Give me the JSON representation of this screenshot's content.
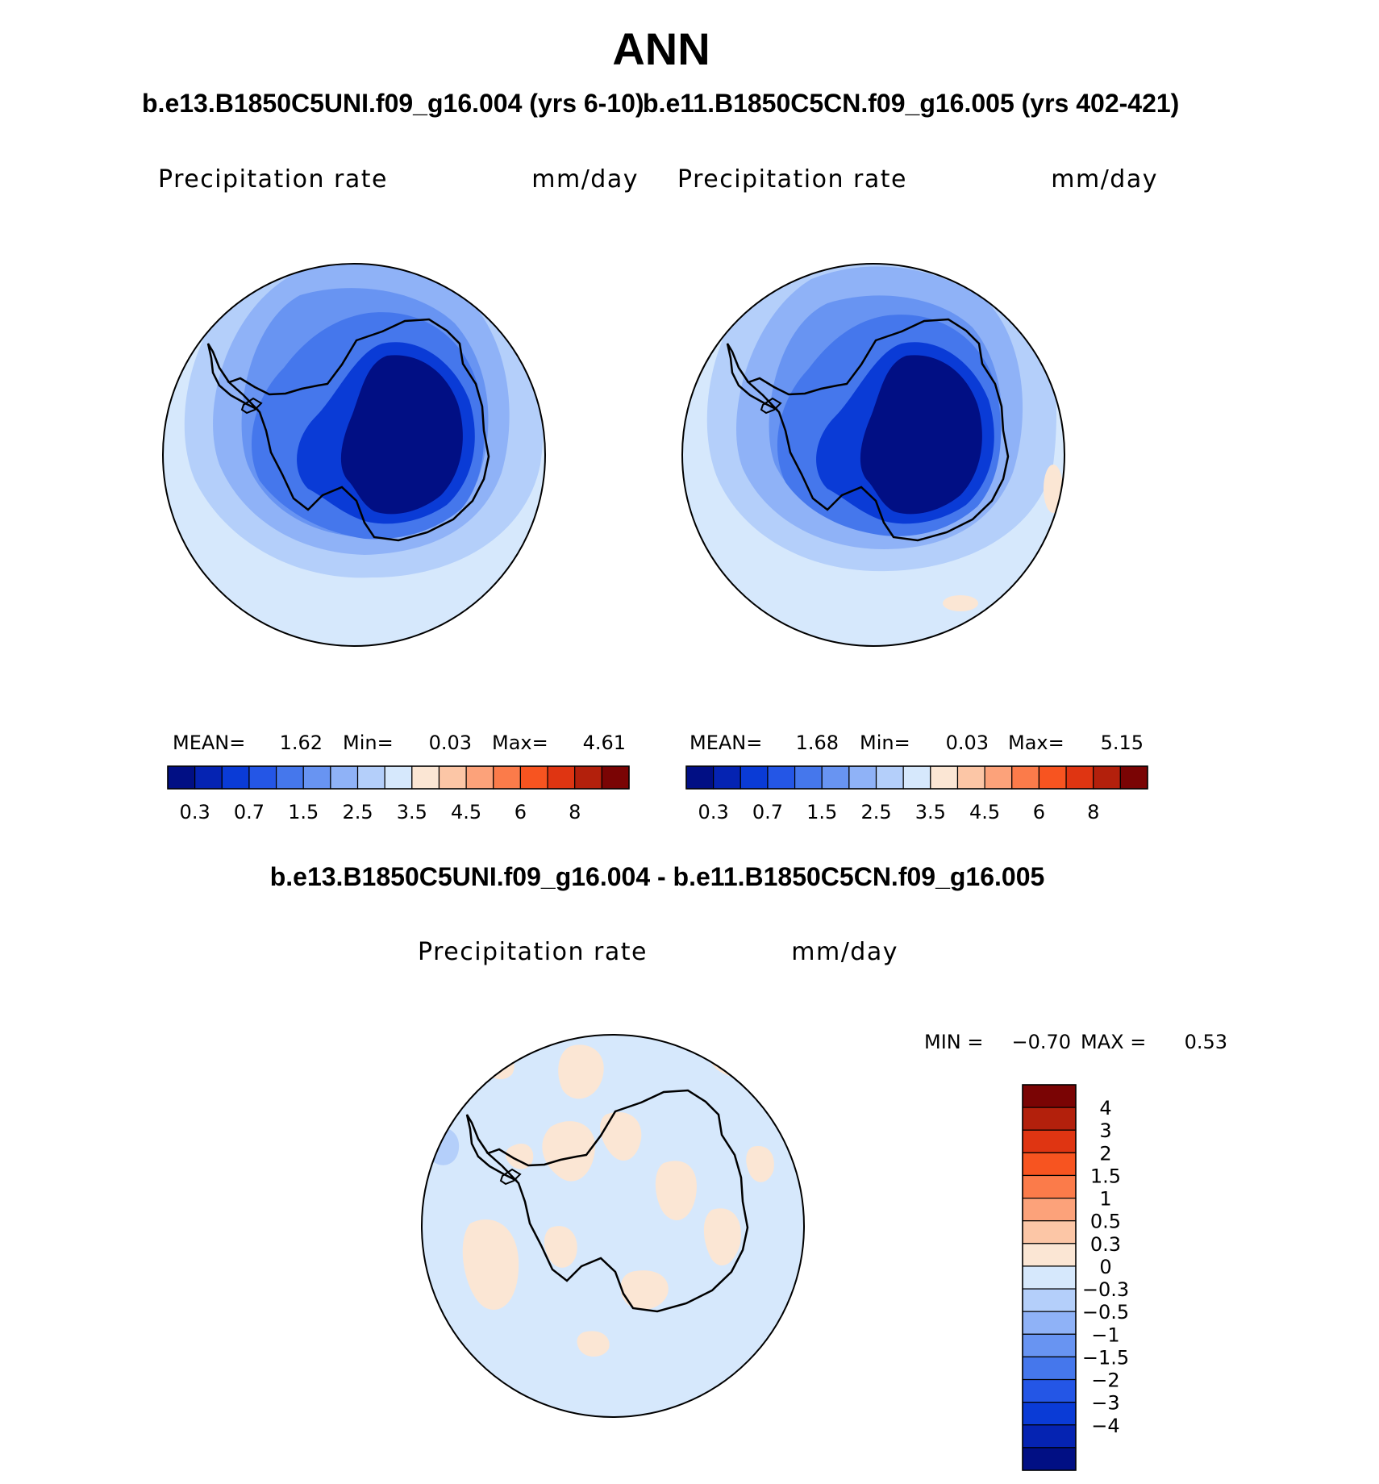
{
  "title": "ANN",
  "colors": {
    "pos": [
      "#fbe6d4",
      "#fcc6a6",
      "#fca27a",
      "#fb7b4a",
      "#f75420",
      "#df3512",
      "#b3200c",
      "#7a0404"
    ],
    "neg": [
      "#d6e8fc",
      "#b4cffa",
      "#8fb2f7",
      "#6894f2",
      "#4577ec",
      "#2456e6",
      "#0a3bd6",
      "#0523b2",
      "#010f84"
    ],
    "land_outline": "#000000"
  },
  "panels": [
    {
      "case_title": "b.e13.B1850C5UNI.f09_g16.004 (yrs 6-10)",
      "variable": "Precipitation rate",
      "units": "mm/day",
      "stats": {
        "mean_label": "MEAN=",
        "mean": "1.62",
        "min_label": "Min=",
        "min": "0.03",
        "max_label": "Max=",
        "max": "4.61"
      }
    },
    {
      "case_title": "b.e11.B1850C5CN.f09_g16.005 (yrs 402-421)",
      "variable": "Precipitation rate",
      "units": "mm/day",
      "stats": {
        "mean_label": "MEAN=",
        "mean": "1.68",
        "min_label": "Min=",
        "min": "0.03",
        "max_label": "Max=",
        "max": "5.15"
      }
    }
  ],
  "difference": {
    "case_title": "b.e13.B1850C5UNI.f09_g16.004 - b.e11.B1850C5CN.f09_g16.005",
    "variable": "Precipitation rate",
    "units": "mm/day",
    "stats": {
      "min_label": "MIN =",
      "min": "−0.70",
      "max_label": "MAX =",
      "max": "0.53"
    }
  },
  "chart_data": [
    {
      "type": "heatmap",
      "projection": "south-polar stereographic",
      "title": "b.e13.B1850C5UNI.f09_g16.004 (yrs 6-10)",
      "field": "Precipitation rate",
      "units": "mm/day",
      "mean": 1.62,
      "min": 0.03,
      "max": 4.61,
      "colorbar_levels": [
        0.2,
        0.3,
        0.5,
        0.7,
        1,
        1.5,
        2,
        2.5,
        3,
        3.5,
        4,
        4.5,
        5,
        6,
        7,
        8
      ],
      "colorbar_tick_labels": [
        "0.3",
        "0.7",
        "1.5",
        "2.5",
        "3.5",
        "4.5",
        "6",
        "8"
      ],
      "colorbar_placement": "bottom"
    },
    {
      "type": "heatmap",
      "projection": "south-polar stereographic",
      "title": "b.e11.B1850C5CN.f09_g16.005 (yrs 402-421)",
      "field": "Precipitation rate",
      "units": "mm/day",
      "mean": 1.68,
      "min": 0.03,
      "max": 5.15,
      "colorbar_levels": [
        0.2,
        0.3,
        0.5,
        0.7,
        1,
        1.5,
        2,
        2.5,
        3,
        3.5,
        4,
        4.5,
        5,
        6,
        7,
        8
      ],
      "colorbar_tick_labels": [
        "0.3",
        "0.7",
        "1.5",
        "2.5",
        "3.5",
        "4.5",
        "6",
        "8"
      ],
      "colorbar_placement": "bottom"
    },
    {
      "type": "heatmap",
      "projection": "south-polar stereographic",
      "title": "b.e13.B1850C5UNI.f09_g16.004 - b.e11.B1850C5CN.f09_g16.005",
      "field": "Precipitation rate",
      "units": "mm/day",
      "min": -0.7,
      "max": 0.53,
      "colorbar_levels": [
        4,
        3,
        2,
        1.5,
        1,
        0.5,
        0.3,
        0,
        -0.3,
        -0.5,
        -1,
        -1.5,
        -2,
        -3,
        -4
      ],
      "colorbar_tick_labels": [
        "4",
        "3",
        "2",
        "1.5",
        "1",
        "0.5",
        "0.3",
        "0",
        "−0.3",
        "−0.5",
        "−1",
        "−1.5",
        "−2",
        "−3",
        "−4"
      ],
      "colorbar_placement": "right"
    }
  ]
}
